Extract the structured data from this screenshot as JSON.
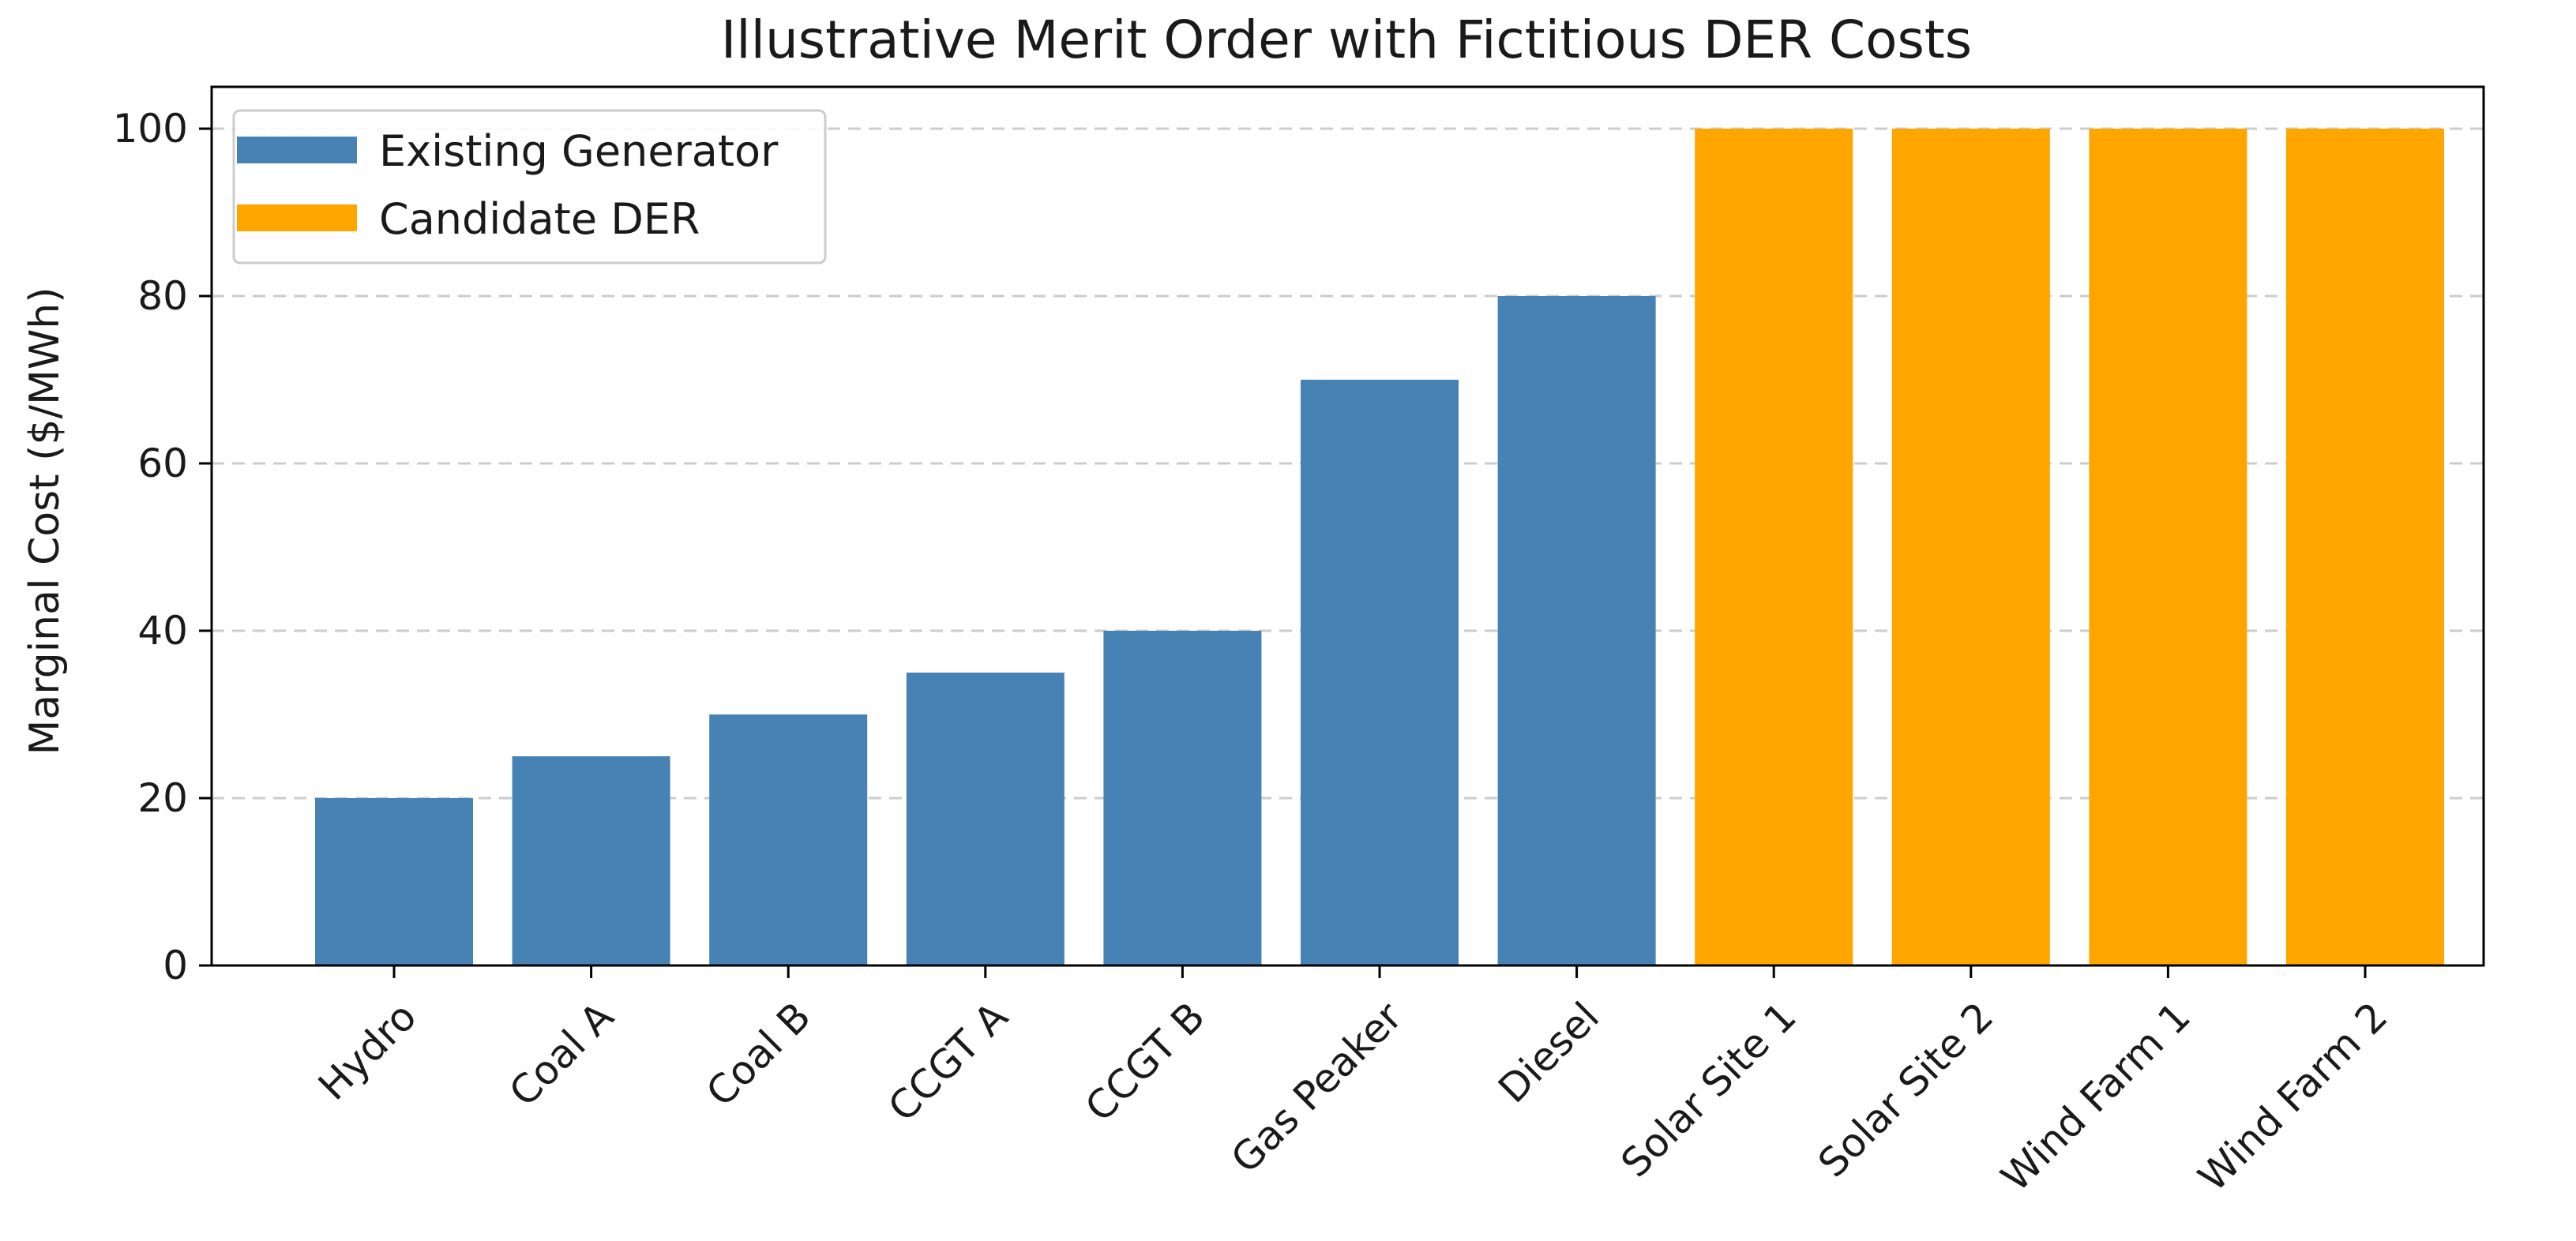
{
  "chart_data": {
    "type": "bar",
    "title": "Illustrative Merit Order with Fictitious DER Costs",
    "xlabel": "",
    "ylabel": "Marginal Cost ($/MWh)",
    "ylim": [
      0,
      105
    ],
    "yticks": [
      0,
      20,
      40,
      60,
      80,
      100
    ],
    "grid": "y-dashed",
    "legend_position": "top-left",
    "categories": [
      "Hydro",
      "Coal A",
      "Coal B",
      "CCGT A",
      "CCGT B",
      "Gas Peaker",
      "Diesel",
      "Solar Site 1",
      "Solar Site 2",
      "Wind Farm 1",
      "Wind Farm 2"
    ],
    "values": [
      20,
      25,
      30,
      35,
      40,
      70,
      80,
      100,
      100,
      100,
      100
    ],
    "groups": [
      "Existing Generator",
      "Existing Generator",
      "Existing Generator",
      "Existing Generator",
      "Existing Generator",
      "Existing Generator",
      "Existing Generator",
      "Candidate DER",
      "Candidate DER",
      "Candidate DER",
      "Candidate DER"
    ],
    "legend": [
      {
        "label": "Existing Generator",
        "color": "#4682b4"
      },
      {
        "label": "Candidate DER",
        "color": "#ffa500"
      }
    ]
  }
}
